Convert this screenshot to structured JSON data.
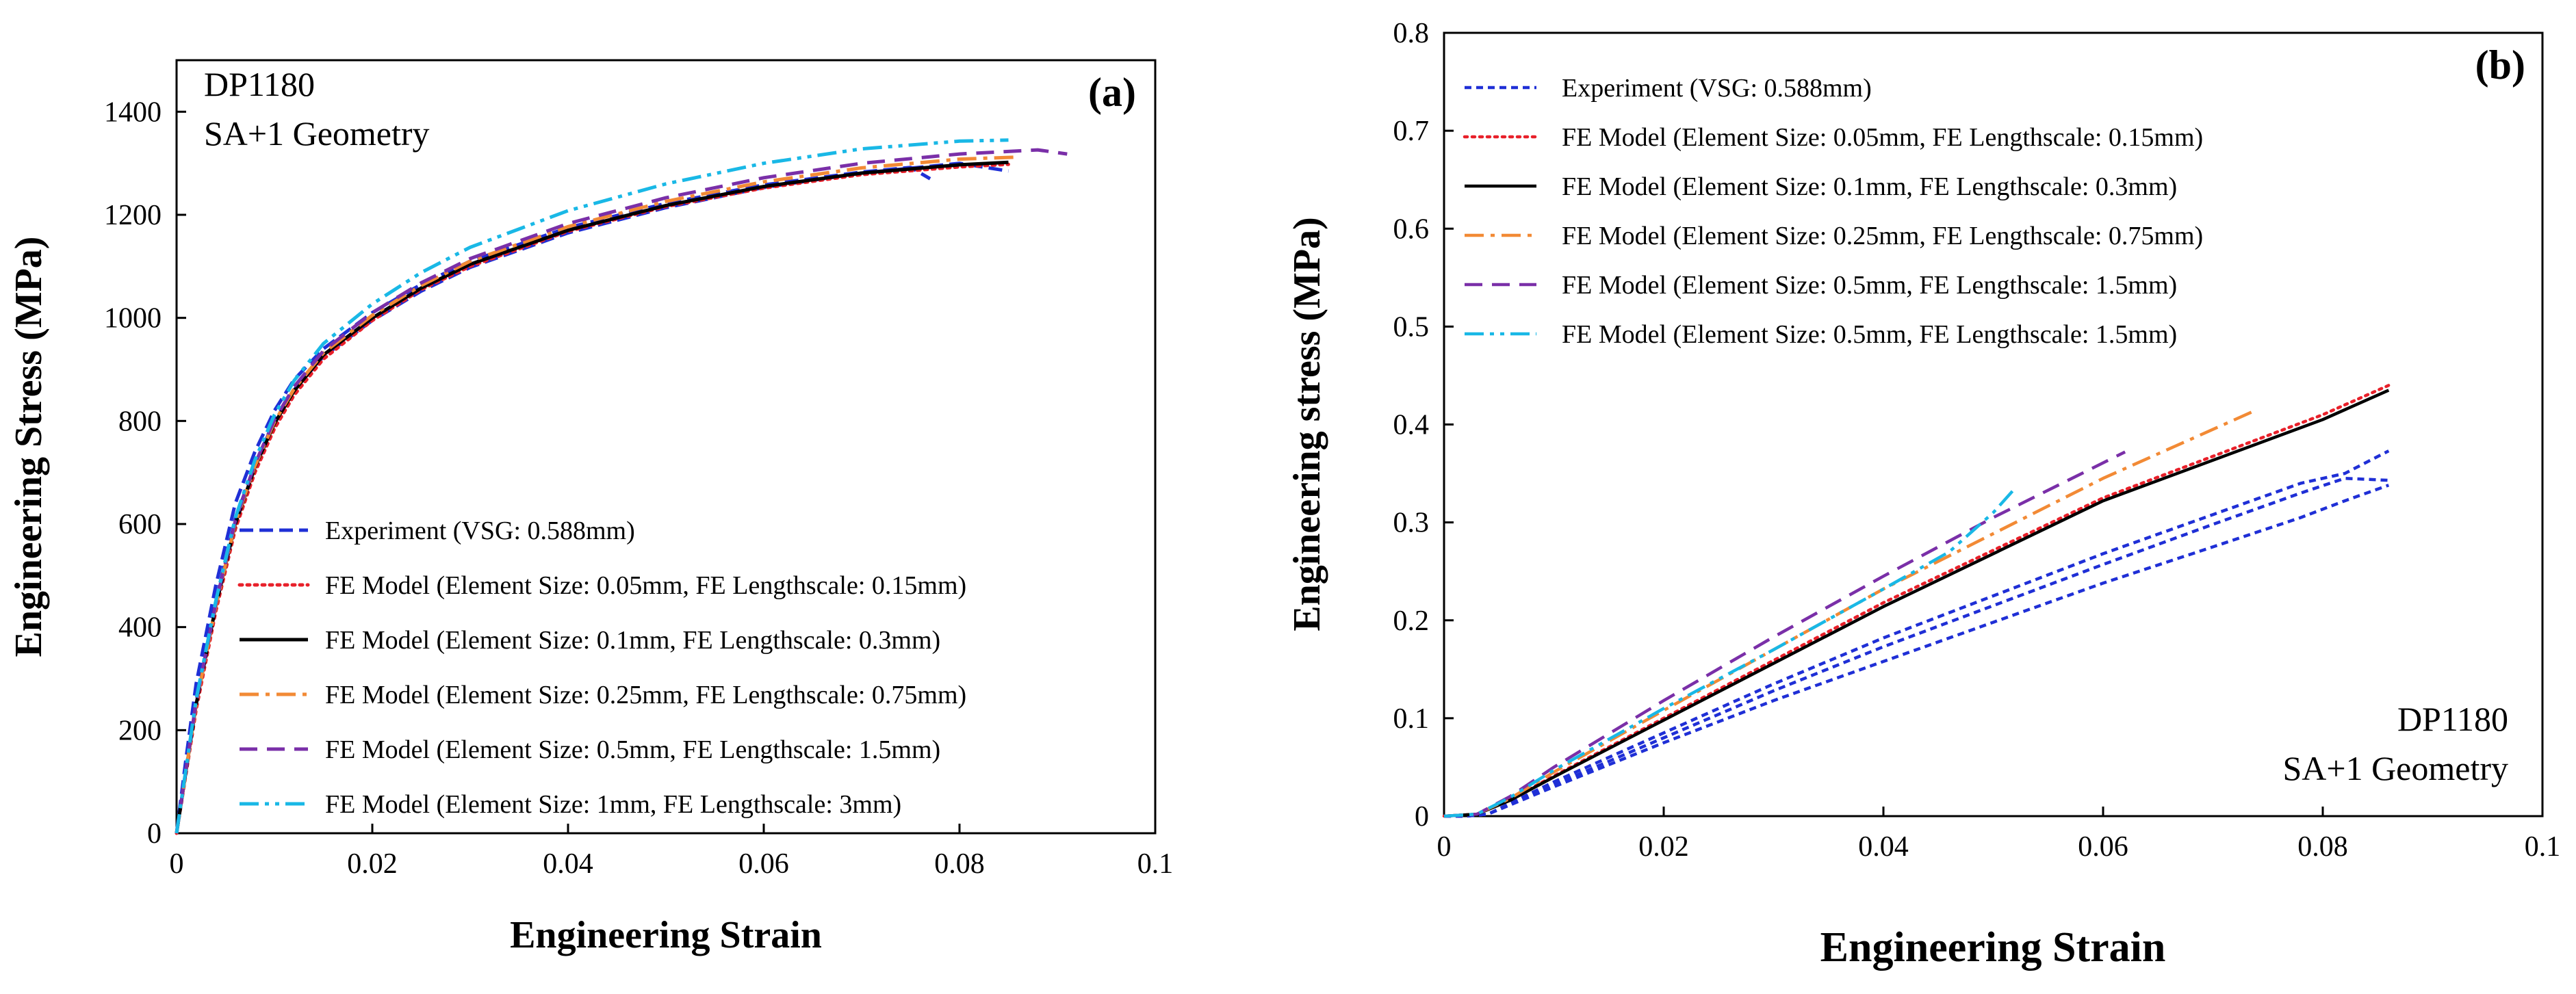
{
  "chart_data": [
    {
      "type": "line",
      "panel_label": "(a)",
      "annotation": [
        "DP1180",
        "SA+1 Geometry"
      ],
      "xlabel": "Engineering Strain",
      "ylabel": "Engineering Stress (MPa)",
      "xlim": [
        0,
        0.1
      ],
      "ylim": [
        0,
        1500
      ],
      "x_ticks": [
        "0",
        "0.02",
        "0.04",
        "0.06",
        "0.08",
        "0.1"
      ],
      "y_ticks": [
        "0",
        "200",
        "400",
        "600",
        "800",
        "1000",
        "1200",
        "1400"
      ],
      "grid": false,
      "legend_position": "bottom-right",
      "series": [
        {
          "name": "Experiment (VSG: 0.588mm)",
          "color": "#1f2fd6",
          "dash": "long-dash",
          "x": [
            0,
            0.001,
            0.002,
            0.004,
            0.006,
            0.008,
            0.01,
            0.012,
            0.015,
            0.02,
            0.025,
            0.03,
            0.04,
            0.05,
            0.06,
            0.07,
            0.075,
            0.077
          ],
          "y": [
            0,
            150,
            290,
            480,
            640,
            740,
            820,
            880,
            940,
            1010,
            1065,
            1110,
            1175,
            1222,
            1258,
            1283,
            1292,
            1270
          ]
        },
        {
          "name": "Experiment (VSG: 0.588mm)",
          "color": "#1f2fd6",
          "dash": "long-dash",
          "x": [
            0,
            0.001,
            0.002,
            0.004,
            0.006,
            0.008,
            0.01,
            0.012,
            0.015,
            0.02,
            0.025,
            0.03,
            0.04,
            0.05,
            0.06,
            0.07,
            0.08,
            0.085
          ],
          "y": [
            0,
            130,
            260,
            450,
            610,
            715,
            800,
            860,
            925,
            995,
            1052,
            1098,
            1165,
            1214,
            1253,
            1281,
            1300,
            1285
          ]
        },
        {
          "name": "FE Model (Element Size: 0.05mm, FE Lengthscale: 0.15mm)",
          "color": "#e8202a",
          "dash": "dot",
          "x": [
            0,
            0.001,
            0.002,
            0.004,
            0.006,
            0.008,
            0.01,
            0.012,
            0.015,
            0.02,
            0.025,
            0.03,
            0.04,
            0.05,
            0.06,
            0.07,
            0.08,
            0.085
          ],
          "y": [
            0,
            120,
            240,
            430,
            590,
            700,
            785,
            850,
            920,
            995,
            1055,
            1100,
            1168,
            1216,
            1252,
            1278,
            1293,
            1298
          ]
        },
        {
          "name": "FE Model (Element Size: 0.1mm, FE Lengthscale: 0.3mm)",
          "color": "#000000",
          "dash": "solid",
          "x": [
            0,
            0.001,
            0.002,
            0.004,
            0.006,
            0.008,
            0.01,
            0.012,
            0.015,
            0.02,
            0.025,
            0.03,
            0.04,
            0.05,
            0.06,
            0.07,
            0.08,
            0.085
          ],
          "y": [
            0,
            125,
            250,
            440,
            600,
            710,
            795,
            858,
            928,
            1000,
            1058,
            1104,
            1170,
            1218,
            1255,
            1281,
            1297,
            1302
          ]
        },
        {
          "name": "FE Model (Element Size: 0.25mm, FE Lengthscale: 0.75mm)",
          "color": "#f28a35",
          "dash": "dash-dot",
          "x": [
            0,
            0.001,
            0.002,
            0.004,
            0.006,
            0.008,
            0.01,
            0.012,
            0.015,
            0.02,
            0.025,
            0.03,
            0.04,
            0.05,
            0.06,
            0.07,
            0.08,
            0.086
          ],
          "y": [
            0,
            125,
            250,
            440,
            602,
            712,
            798,
            862,
            932,
            1005,
            1063,
            1110,
            1177,
            1226,
            1264,
            1291,
            1308,
            1312
          ]
        },
        {
          "name": "FE Model (Element Size: 0.5mm, FE Lengthscale: 1.5mm)",
          "color": "#7a2fa8",
          "dash": "dash",
          "x": [
            0,
            0.001,
            0.002,
            0.004,
            0.006,
            0.008,
            0.01,
            0.012,
            0.015,
            0.02,
            0.025,
            0.03,
            0.04,
            0.05,
            0.06,
            0.07,
            0.08,
            0.088,
            0.091
          ],
          "y": [
            0,
            128,
            255,
            445,
            606,
            716,
            802,
            866,
            936,
            1010,
            1068,
            1115,
            1183,
            1233,
            1272,
            1300,
            1318,
            1326,
            1318
          ]
        },
        {
          "name": "FE Model (Element Size: 1mm, FE Lengthscale: 3mm)",
          "color": "#19b8e6",
          "dash": "dash-dot-dot",
          "x": [
            0,
            0.001,
            0.002,
            0.004,
            0.006,
            0.008,
            0.01,
            0.012,
            0.015,
            0.02,
            0.025,
            0.03,
            0.04,
            0.05,
            0.06,
            0.07,
            0.08,
            0.085
          ],
          "y": [
            0,
            130,
            260,
            450,
            612,
            724,
            812,
            878,
            950,
            1027,
            1088,
            1137,
            1208,
            1260,
            1300,
            1328,
            1343,
            1345
          ]
        }
      ]
    },
    {
      "type": "line",
      "panel_label": "(b)",
      "annotation": [
        "DP1180",
        "SA+1 Geometry"
      ],
      "xlabel": "Engineering Strain",
      "ylabel": "Engineering stress (MPa)",
      "xlim": [
        0,
        0.1
      ],
      "ylim": [
        0,
        0.8
      ],
      "x_ticks": [
        "0",
        "0.02",
        "0.04",
        "0.06",
        "0.08",
        "0.1"
      ],
      "y_ticks": [
        "0",
        "0.1",
        "0.2",
        "0.3",
        "0.4",
        "0.5",
        "0.6",
        "0.7",
        "0.8"
      ],
      "grid": false,
      "legend_position": "top-left",
      "series": [
        {
          "name": "Experiment (VSG: 0.588mm)",
          "color": "#1f2fd6",
          "dash": "short-dash",
          "x": [
            0,
            0.002,
            0.004,
            0.01,
            0.02,
            0.03,
            0.04,
            0.05,
            0.06,
            0.07,
            0.078,
            0.082,
            0.086
          ],
          "y": [
            0,
            0,
            0.002,
            0.035,
            0.085,
            0.135,
            0.182,
            0.225,
            0.268,
            0.308,
            0.34,
            0.35,
            0.373
          ]
        },
        {
          "name": "Experiment (VSG: 0.588mm)",
          "color": "#1f2fd6",
          "dash": "short-dash",
          "x": [
            0,
            0.002,
            0.004,
            0.01,
            0.02,
            0.03,
            0.04,
            0.05,
            0.06,
            0.07,
            0.078,
            0.082,
            0.086
          ],
          "y": [
            0,
            0,
            0.002,
            0.032,
            0.08,
            0.128,
            0.173,
            0.215,
            0.257,
            0.298,
            0.33,
            0.345,
            0.343
          ]
        },
        {
          "name": "Experiment (VSG: 0.588mm)",
          "color": "#1f2fd6",
          "dash": "short-dash",
          "x": [
            0,
            0.002,
            0.004,
            0.01,
            0.02,
            0.03,
            0.04,
            0.05,
            0.06,
            0.07,
            0.078,
            0.082,
            0.086
          ],
          "y": [
            0,
            0,
            0.002,
            0.03,
            0.075,
            0.118,
            0.158,
            0.198,
            0.238,
            0.275,
            0.305,
            0.322,
            0.338
          ]
        },
        {
          "name": "FE Model (Element Size: 0.05mm, FE Lengthscale: 0.15mm)",
          "color": "#e8202a",
          "dash": "dot",
          "x": [
            0,
            0.003,
            0.006,
            0.01,
            0.02,
            0.04,
            0.06,
            0.08,
            0.086
          ],
          "y": [
            0,
            0.002,
            0.017,
            0.041,
            0.1,
            0.218,
            0.325,
            0.41,
            0.44
          ]
        },
        {
          "name": "FE Model (Element Size: 0.1mm, FE Lengthscale: 0.3mm)",
          "color": "#000000",
          "dash": "solid",
          "x": [
            0,
            0.003,
            0.006,
            0.01,
            0.02,
            0.04,
            0.06,
            0.08,
            0.086
          ],
          "y": [
            0,
            0.002,
            0.016,
            0.04,
            0.098,
            0.214,
            0.322,
            0.405,
            0.435
          ]
        },
        {
          "name": "FE Model (Element Size: 0.25mm, FE Lengthscale: 0.75mm)",
          "color": "#f28a35",
          "dash": "dash-dot",
          "x": [
            0,
            0.003,
            0.006,
            0.01,
            0.02,
            0.04,
            0.06,
            0.074
          ],
          "y": [
            0,
            0.002,
            0.018,
            0.045,
            0.108,
            0.232,
            0.345,
            0.415
          ]
        },
        {
          "name": "FE Model (Element Size: 0.5mm, FE Lengthscale: 1.5mm)",
          "color": "#7a2fa8",
          "dash": "dash",
          "x": [
            0,
            0.003,
            0.006,
            0.01,
            0.02,
            0.03,
            0.04,
            0.05,
            0.062
          ],
          "y": [
            0,
            0.002,
            0.02,
            0.05,
            0.118,
            0.183,
            0.245,
            0.305,
            0.372
          ]
        },
        {
          "name": "FE Model (Element Size: 0.5mm, FE Lengthscale: 1.5mm)",
          "color": "#19b8e6",
          "dash": "dash-dot-dot",
          "x": [
            0,
            0.003,
            0.006,
            0.01,
            0.02,
            0.03,
            0.04,
            0.046,
            0.05,
            0.052
          ],
          "y": [
            0,
            0.002,
            0.019,
            0.047,
            0.11,
            0.17,
            0.232,
            0.27,
            0.31,
            0.335
          ]
        }
      ]
    }
  ]
}
